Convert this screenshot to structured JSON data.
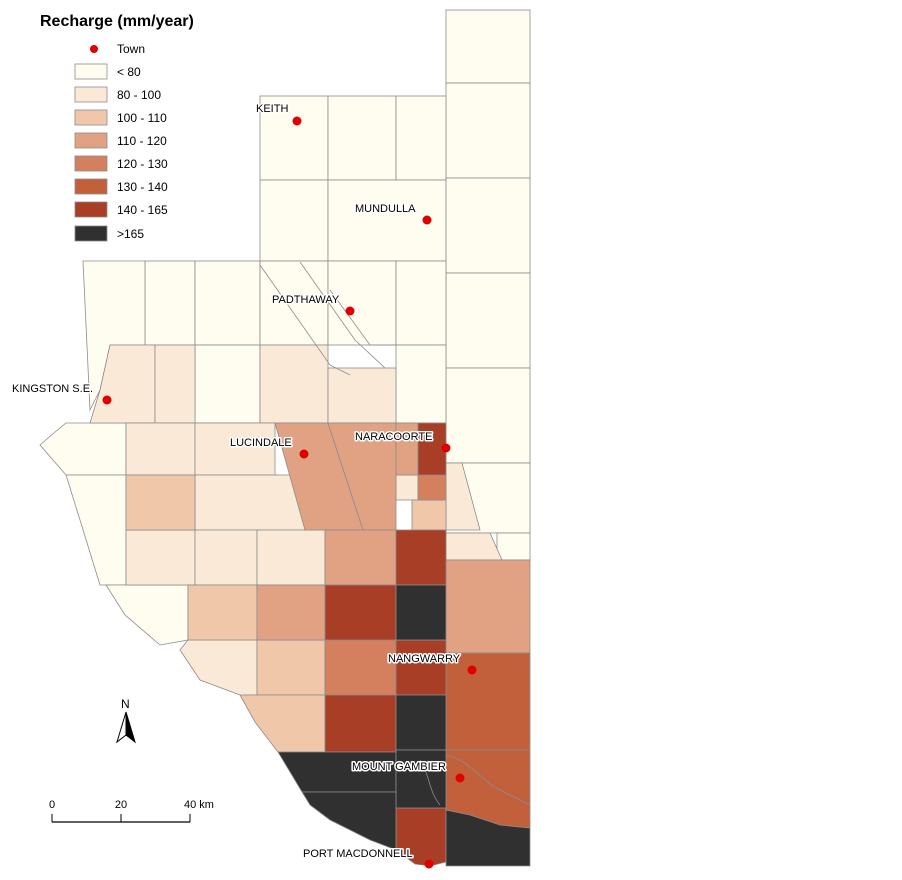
{
  "legend": {
    "title": "Recharge (mm/year)",
    "town_label": "Town",
    "classes": [
      {
        "label": "< 80",
        "color": "#fffdf0"
      },
      {
        "label": "80 - 100",
        "color": "#fae9d6"
      },
      {
        "label": "100 - 110",
        "color": "#f0c7a9"
      },
      {
        "label": "110 - 120",
        "color": "#e1a284"
      },
      {
        "label": "120 - 130",
        "color": "#d47f5e"
      },
      {
        "label": "130 - 140",
        "color": "#c3603c"
      },
      {
        "label": "140 - 165",
        "color": "#a83e26"
      },
      {
        "label": ">165",
        "color": "#303030"
      }
    ]
  },
  "towns": [
    {
      "name": "KEITH"
    },
    {
      "name": "MUNDULLA"
    },
    {
      "name": "PADTHAWAY"
    },
    {
      "name": "KINGSTON S.E."
    },
    {
      "name": "LUCINDALE"
    },
    {
      "name": "NARACOORTE"
    },
    {
      "name": "NANGWARRY"
    },
    {
      "name": "MOUNT GAMBIER"
    },
    {
      "name": "PORT MACDONNELL"
    }
  ],
  "north_arrow": {
    "label": "N"
  },
  "scale_bar": {
    "ticks": [
      "0",
      "20",
      "40 km"
    ]
  },
  "colors": {
    "town_dot": "#e00000",
    "outline": "#8c8c8c"
  }
}
